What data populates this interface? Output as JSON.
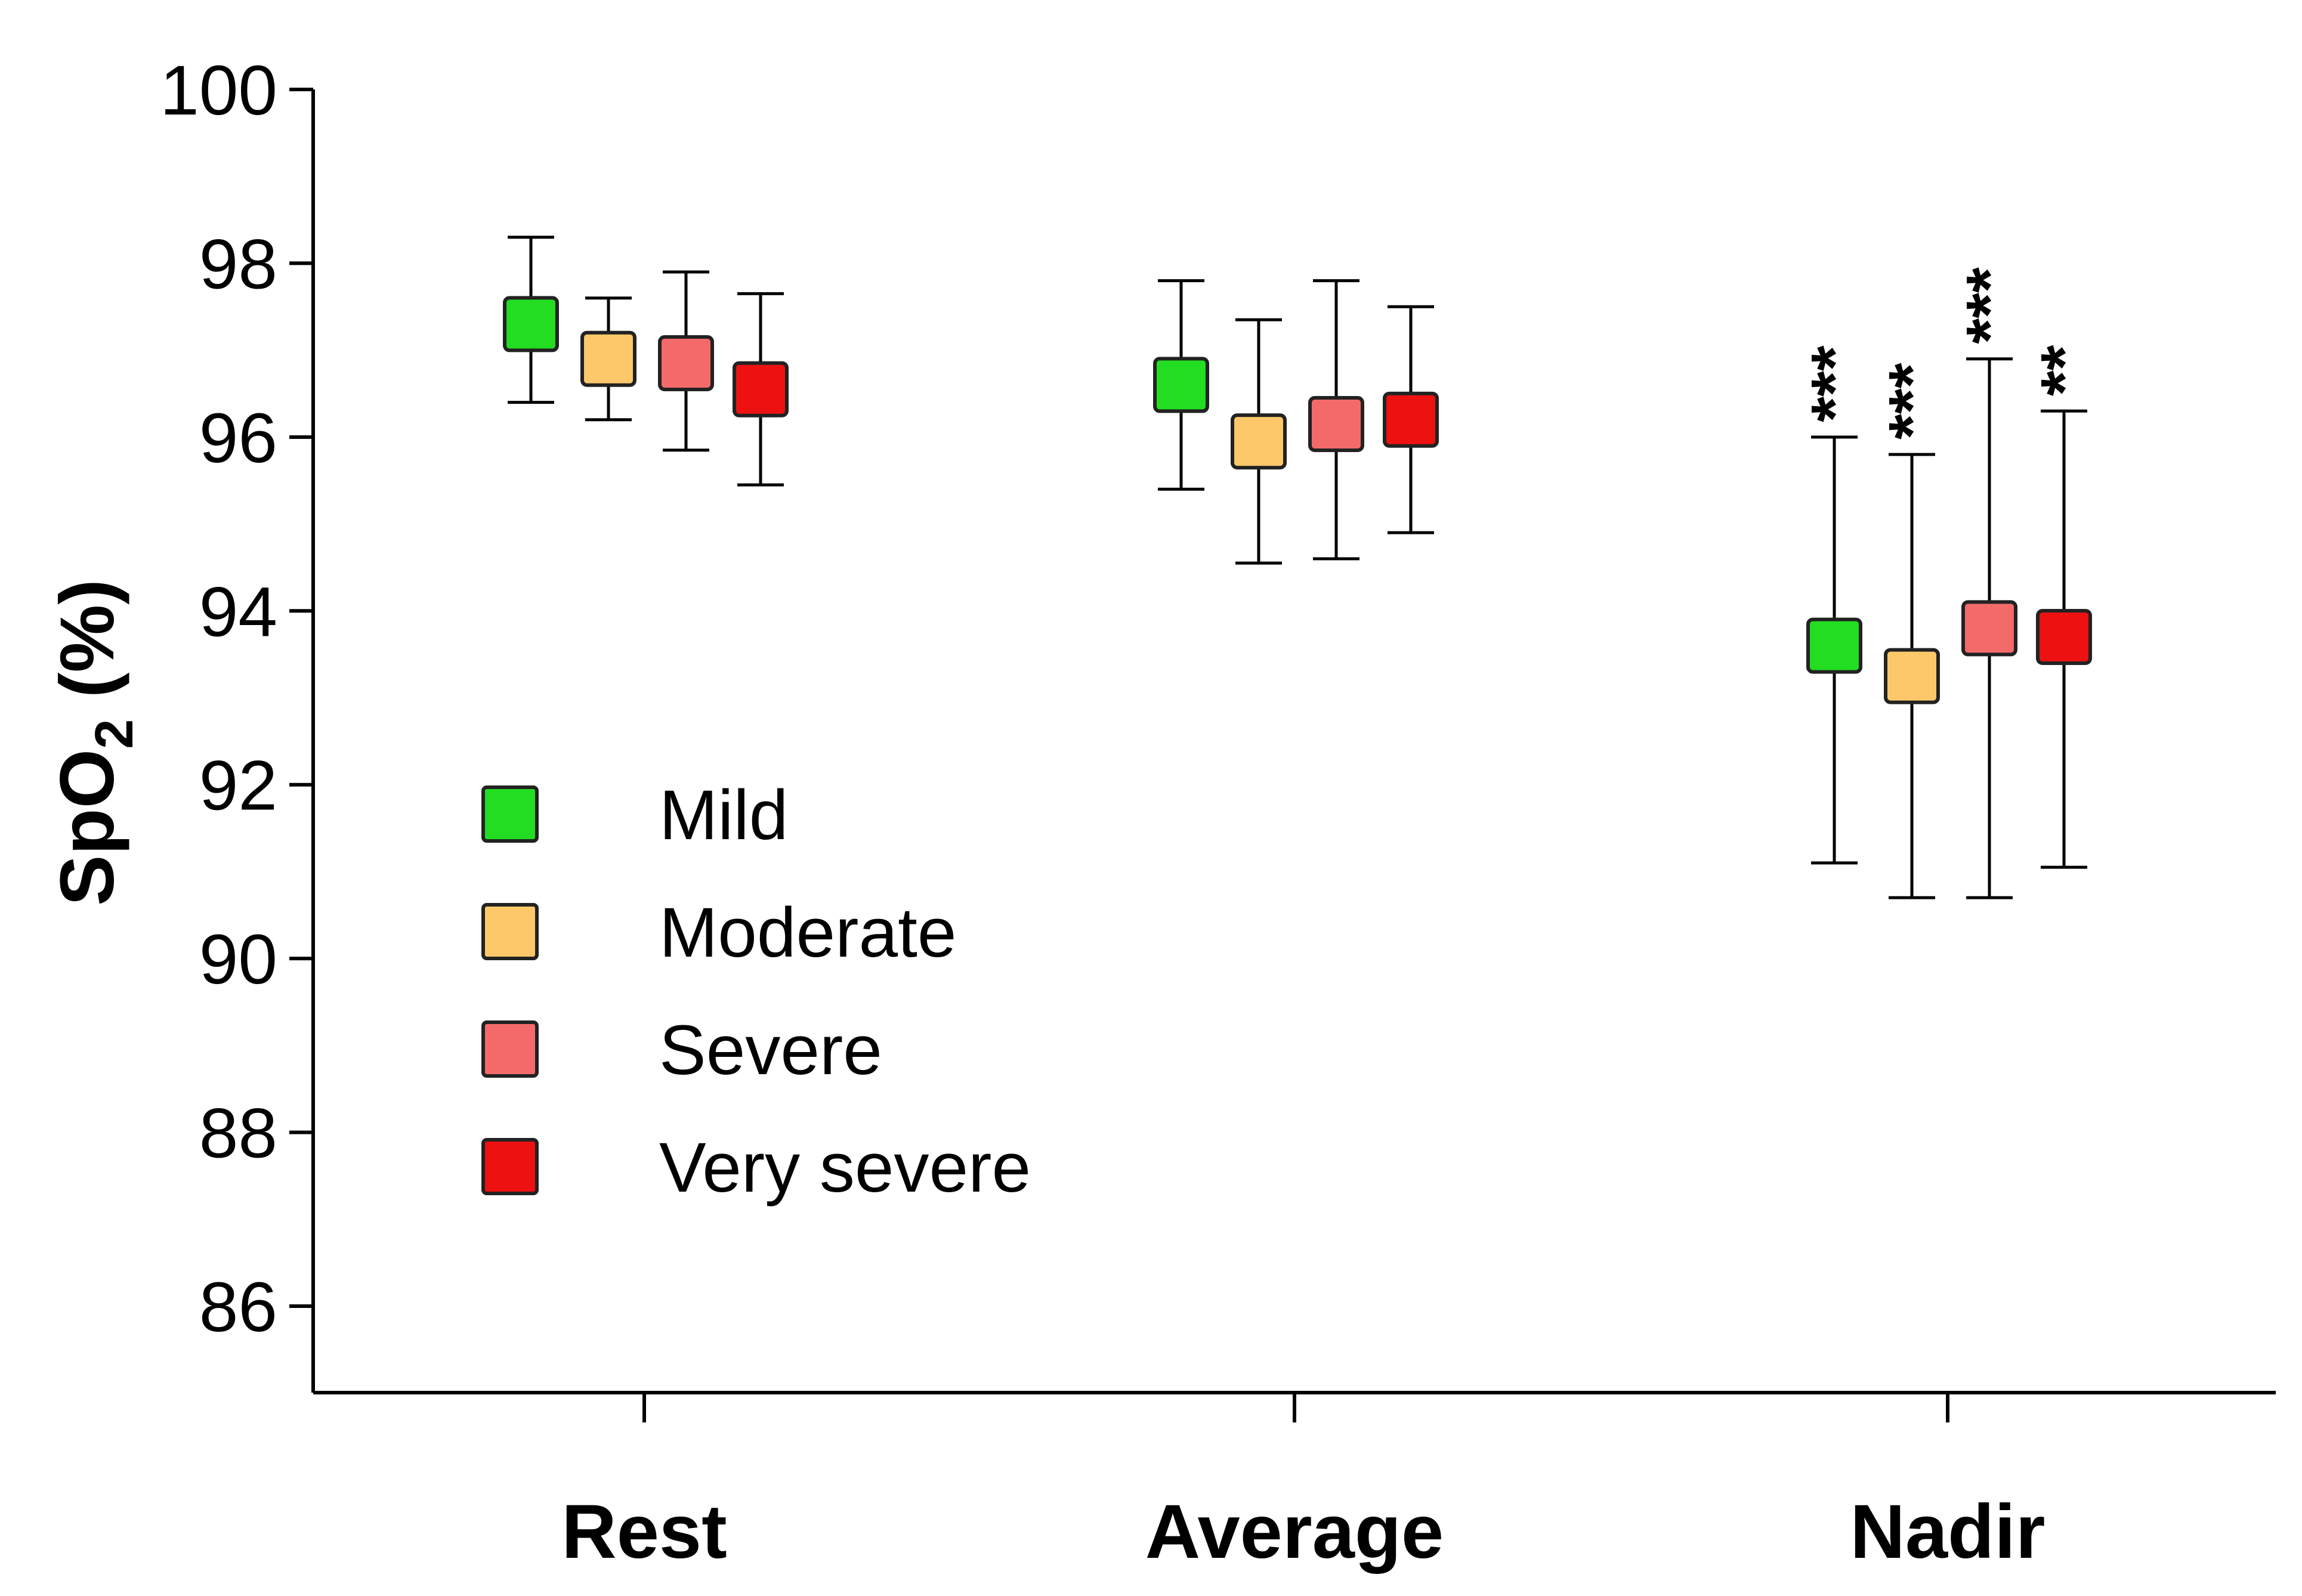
{
  "chart_data": {
    "type": "scatter",
    "title": "",
    "xlabel": "",
    "ylabel_main": "SpO",
    "ylabel_sub": "2",
    "ylabel_unit": " (%)",
    "ylim": [
      85,
      100
    ],
    "yticks": [
      "100",
      "98",
      "96",
      "94",
      "92",
      "90",
      "88",
      "86"
    ],
    "ytick_values": [
      100,
      98,
      96,
      94,
      92,
      90,
      88,
      86
    ],
    "categories": [
      "Rest",
      "Average",
      "Nadir"
    ],
    "legend_position": "center-left",
    "series": [
      {
        "name": "Mild",
        "color": "#22dd22",
        "values": [
          97.3,
          96.6,
          93.6
        ],
        "upper": [
          98.3,
          97.8,
          96.0
        ],
        "lower": [
          96.4,
          95.4,
          91.1
        ],
        "significance": [
          "",
          "",
          "***"
        ]
      },
      {
        "name": "Moderate",
        "color": "#fcc86a",
        "values": [
          96.9,
          95.95,
          93.25
        ],
        "upper": [
          97.6,
          97.35,
          95.8
        ],
        "lower": [
          96.2,
          94.55,
          90.7
        ],
        "significance": [
          "",
          "",
          "***"
        ]
      },
      {
        "name": "Severe",
        "color": "#f46a6a",
        "values": [
          96.85,
          96.15,
          93.8
        ],
        "upper": [
          97.9,
          97.8,
          96.9
        ],
        "lower": [
          95.85,
          94.6,
          90.7
        ],
        "significance": [
          "",
          "",
          "***"
        ]
      },
      {
        "name": "Very severe",
        "color": "#ee1111",
        "values": [
          96.55,
          96.2,
          93.7
        ],
        "upper": [
          97.65,
          97.5,
          96.3
        ],
        "lower": [
          95.45,
          94.9,
          91.05
        ],
        "significance": [
          "",
          "",
          "**"
        ]
      }
    ]
  }
}
